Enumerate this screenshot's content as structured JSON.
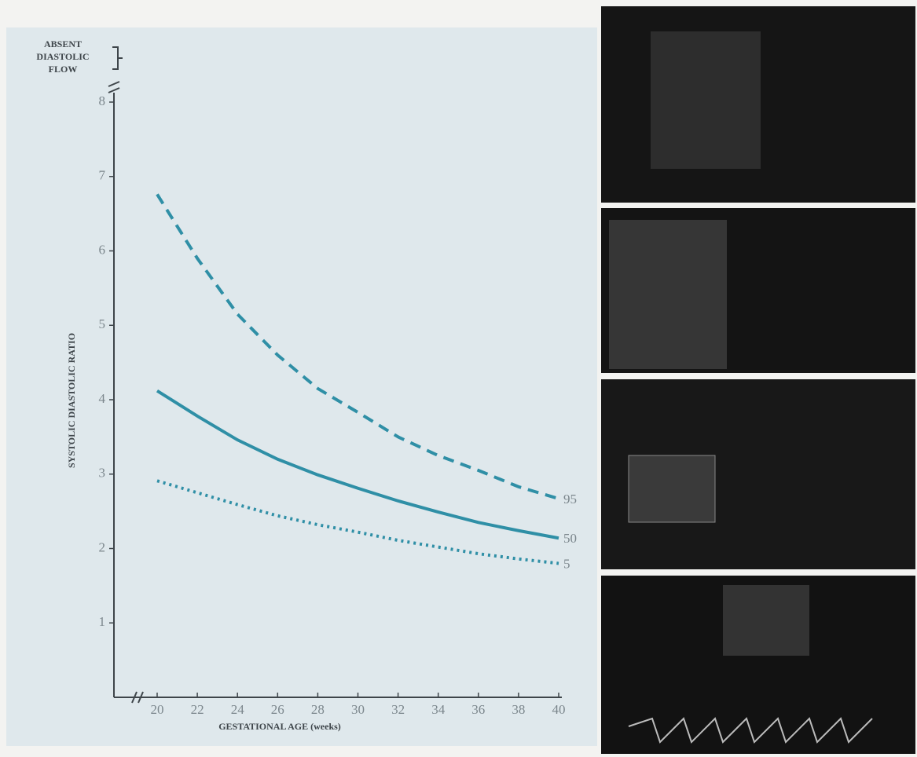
{
  "chart_data": {
    "type": "line",
    "annotation": [
      "ABSENT",
      "DIASTOLIC",
      "FLOW"
    ],
    "x_label": "GESTATIONAL AGE (weeks)",
    "y_label": "SYSTOLIC DIASTOLIC RATIO",
    "x": [
      20,
      22,
      24,
      26,
      28,
      30,
      32,
      34,
      36,
      38,
      40
    ],
    "series": [
      {
        "name": "95",
        "color": "#2f8fa6",
        "dash": "dashed",
        "values": [
          6.76,
          5.9,
          5.15,
          4.6,
          4.15,
          3.83,
          3.5,
          3.25,
          3.05,
          2.83,
          2.67
        ]
      },
      {
        "name": "50",
        "color": "#2f8fa6",
        "dash": "solid",
        "values": [
          4.12,
          3.78,
          3.46,
          3.2,
          2.99,
          2.81,
          2.64,
          2.49,
          2.35,
          2.24,
          2.14
        ]
      },
      {
        "name": "5",
        "color": "#2f8fa6",
        "dash": "dotted",
        "values": [
          2.91,
          2.75,
          2.59,
          2.44,
          2.32,
          2.22,
          2.11,
          2.02,
          1.93,
          1.86,
          1.8
        ]
      }
    ],
    "xlim": [
      20,
      40
    ],
    "xticks": [
      20,
      22,
      24,
      26,
      28,
      30,
      32,
      34,
      36,
      38,
      40
    ],
    "ylim": [
      0,
      8
    ],
    "yticks": [
      1,
      2,
      3,
      4,
      5,
      6,
      7,
      8
    ],
    "grid": false
  }
}
